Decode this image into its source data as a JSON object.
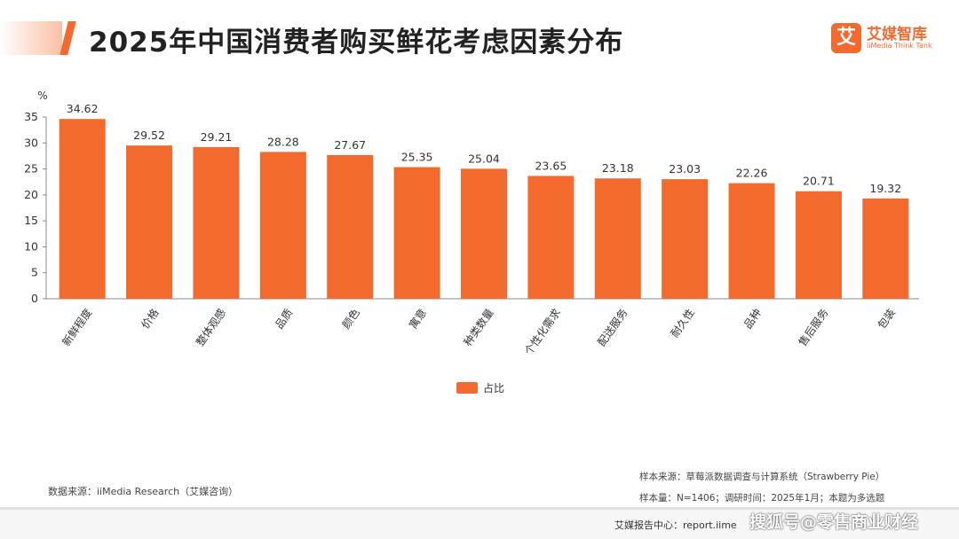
{
  "header": {
    "title": "2025年中国消费者购买鲜花考虑因素分布",
    "logo_mark": "艾",
    "logo_name": "艾媒智库",
    "logo_sub": "iiMedia Think Tank"
  },
  "colors": {
    "accent": "#f26a2e",
    "bar": "#f26a2e"
  },
  "chart_data": {
    "type": "bar",
    "categories": [
      "新鲜程度",
      "价格",
      "整体观感",
      "品质",
      "颜色",
      "寓意",
      "种类数量",
      "个性化需求",
      "配送服务",
      "耐久性",
      "品种",
      "售后服务",
      "包装"
    ],
    "series": [
      {
        "name": "占比",
        "values": [
          34.62,
          29.52,
          29.21,
          28.28,
          27.67,
          25.35,
          25.04,
          23.65,
          23.18,
          23.03,
          22.26,
          20.71,
          19.32
        ]
      }
    ],
    "y_unit": "%",
    "ylim": [
      0,
      35
    ],
    "yticks": [
      0,
      5,
      10,
      15,
      20,
      25,
      30,
      35
    ],
    "grid": false,
    "legend": "bottom-center",
    "data_labels": true
  },
  "legend": {
    "label": "占比"
  },
  "source": "数据来源：iiMedia Research（艾媒咨询）",
  "notes": {
    "sample_source": "样本来源：草莓派数据调查与计算系统（Strawberry Pie）",
    "sample_size": "样本量：N=1406；调研时间：2025年1月；本题为多选题"
  },
  "footer": {
    "report_center": "艾媒报告中心：report.iime",
    "watermark": "搜狐号@零售商业财经"
  }
}
